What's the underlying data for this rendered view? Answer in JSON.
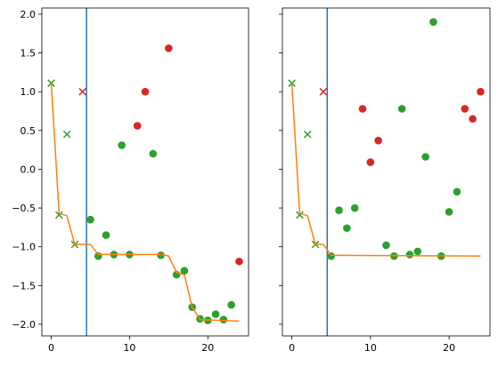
{
  "figure": {
    "background": "#ffffff"
  },
  "chart_data": [
    {
      "type": "scatter",
      "title": "",
      "xlabel": "",
      "ylabel": "",
      "xlim": [
        -1.2,
        25.2
      ],
      "ylim": [
        -2.15,
        2.08
      ],
      "xticks": [
        0,
        10,
        20
      ],
      "yticks": [
        -2.0,
        -1.5,
        -1.0,
        -0.5,
        0.0,
        0.5,
        1.0,
        1.5,
        2.0
      ],
      "ytick_labels": [
        "−2.0",
        "−1.5",
        "−1.0",
        "−0.5",
        "0.0",
        "0.5",
        "1.0",
        "1.5",
        "2.0"
      ],
      "show_yticklabels": true,
      "grid": false,
      "vline": {
        "x": 4.5,
        "color": "#1f77b4"
      },
      "series": [
        {
          "marker": "x",
          "color": "#2ca02c",
          "points": [
            [
              0,
              1.11
            ],
            [
              1,
              -0.59
            ],
            [
              2,
              0.45
            ],
            [
              3,
              -0.97
            ]
          ]
        },
        {
          "marker": "x",
          "color": "#d62728",
          "points": [
            [
              4,
              1.0
            ]
          ]
        },
        {
          "marker": "o",
          "color": "#2ca02c",
          "points": [
            [
              5,
              -0.65
            ],
            [
              6,
              -1.12
            ],
            [
              7,
              -0.85
            ],
            [
              8,
              -1.1
            ],
            [
              9,
              0.31
            ],
            [
              10,
              -1.1
            ],
            [
              13,
              0.2
            ],
            [
              14,
              -1.11
            ],
            [
              16,
              -1.36
            ],
            [
              17,
              -1.31
            ],
            [
              18,
              -1.78
            ],
            [
              19,
              -1.93
            ],
            [
              20,
              -1.95
            ],
            [
              21,
              -1.87
            ],
            [
              22,
              -1.94
            ],
            [
              23,
              -1.75
            ]
          ]
        },
        {
          "marker": "o",
          "color": "#d62728",
          "points": [
            [
              11,
              0.56
            ],
            [
              12,
              1.0
            ],
            [
              15,
              1.56
            ],
            [
              24,
              -1.19
            ]
          ]
        },
        {
          "marker": "line",
          "color": "#ff7f0e",
          "points": [
            [
              0,
              1.11
            ],
            [
              1,
              -0.57
            ],
            [
              2,
              -0.6
            ],
            [
              3,
              -0.97
            ],
            [
              4,
              -0.97
            ],
            [
              5,
              -0.97
            ],
            [
              6,
              -1.1
            ],
            [
              14,
              -1.1
            ],
            [
              15,
              -1.12
            ],
            [
              16,
              -1.33
            ],
            [
              17,
              -1.36
            ],
            [
              18,
              -1.78
            ],
            [
              19,
              -1.94
            ],
            [
              24,
              -1.96
            ]
          ]
        }
      ]
    },
    {
      "type": "scatter",
      "title": "",
      "xlabel": "",
      "ylabel": "",
      "xlim": [
        -1.2,
        25.2
      ],
      "ylim": [
        -2.15,
        2.08
      ],
      "xticks": [
        0,
        10,
        20
      ],
      "yticks": [
        -2.0,
        -1.5,
        -1.0,
        -0.5,
        0.0,
        0.5,
        1.0,
        1.5,
        2.0
      ],
      "show_yticklabels": false,
      "grid": false,
      "vline": {
        "x": 4.5,
        "color": "#1f77b4"
      },
      "series": [
        {
          "marker": "x",
          "color": "#2ca02c",
          "points": [
            [
              0,
              1.11
            ],
            [
              1,
              -0.59
            ],
            [
              2,
              0.45
            ],
            [
              3,
              -0.97
            ]
          ]
        },
        {
          "marker": "x",
          "color": "#d62728",
          "points": [
            [
              4,
              1.0
            ]
          ]
        },
        {
          "marker": "o",
          "color": "#2ca02c",
          "points": [
            [
              5,
              -1.12
            ],
            [
              6,
              -0.53
            ],
            [
              7,
              -0.76
            ],
            [
              8,
              -0.5
            ],
            [
              12,
              -0.98
            ],
            [
              13,
              -1.12
            ],
            [
              14,
              0.78
            ],
            [
              15,
              -1.1
            ],
            [
              16,
              -1.06
            ],
            [
              17,
              0.16
            ],
            [
              18,
              1.9
            ],
            [
              19,
              -1.12
            ],
            [
              20,
              -0.55
            ],
            [
              21,
              -0.29
            ]
          ]
        },
        {
          "marker": "o",
          "color": "#d62728",
          "points": [
            [
              9,
              0.78
            ],
            [
              10,
              0.09
            ],
            [
              11,
              0.37
            ],
            [
              22,
              0.78
            ],
            [
              23,
              0.65
            ],
            [
              24,
              1.0
            ]
          ]
        },
        {
          "marker": "line",
          "color": "#ff7f0e",
          "points": [
            [
              0,
              1.11
            ],
            [
              1,
              -0.57
            ],
            [
              2,
              -0.6
            ],
            [
              3,
              -0.97
            ],
            [
              4,
              -0.97
            ],
            [
              5,
              -1.11
            ],
            [
              24,
              -1.12
            ]
          ]
        }
      ]
    }
  ]
}
